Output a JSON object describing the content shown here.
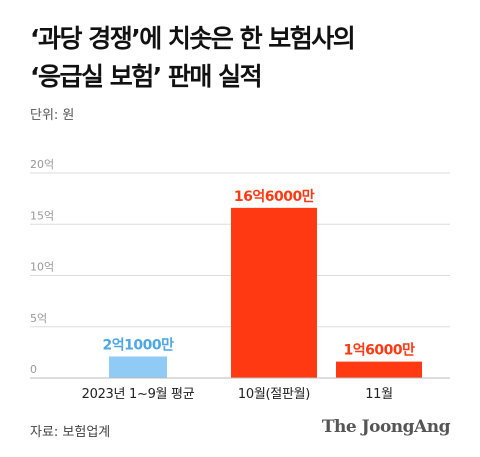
{
  "title": {
    "line1": "‘과당 경쟁’에 치솟은 한 보험사의",
    "line2": "‘응급실 보험’ 판매 실적"
  },
  "unit_label": "단위: 원",
  "source": "자료: 보험업계",
  "logo": "The JoongAng",
  "colors": {
    "highlight": "#ff3a12",
    "baseline": "#8fcbf5",
    "highlight_text": "#ff3a12",
    "baseline_text": "#4da6e6",
    "grid": "#dddddd",
    "axis": "#bbbbbb"
  },
  "chart_data": {
    "type": "bar",
    "categories": [
      "2023년 1~9월 평균",
      "10월(절판월)",
      "11월"
    ],
    "values": [
      210000000,
      1660000000,
      160000000
    ],
    "data_labels": [
      "2억1000만",
      "16억6000만",
      "1억6000만"
    ],
    "bar_colors": [
      "#8fcbf5",
      "#ff3a12",
      "#ff3a12"
    ],
    "label_colors": [
      "#4da6e6",
      "#ff3a12",
      "#ff3a12"
    ],
    "ylim": [
      0,
      2000000000
    ],
    "y_ticks": [
      0,
      500000000,
      1000000000,
      1500000000,
      2000000000
    ],
    "y_tick_labels": [
      "0",
      "5억",
      "10억",
      "15억",
      "20억"
    ],
    "grid": true,
    "xlabel": "",
    "ylabel": ""
  }
}
